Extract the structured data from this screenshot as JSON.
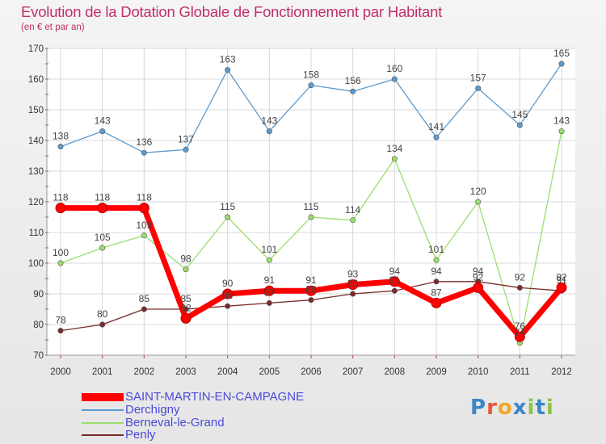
{
  "title": "Evolution de la Dotation Globale de Fonctionnement par Habitant",
  "subtitle": "(en € et par an)",
  "logo": {
    "letters": [
      "P",
      "r",
      "o",
      "x",
      "i",
      "t",
      "i"
    ],
    "colors": [
      "#3a86c8",
      "#e8543a",
      "#f5a623",
      "#3a86c8",
      "#8bc34a",
      "#3a86c8",
      "#8bc34a"
    ]
  },
  "chart_data": {
    "type": "line",
    "title": "Evolution de la Dotation Globale de Fonctionnement par Habitant",
    "subtitle": "(en € et par an)",
    "xlabel": "",
    "ylabel": "",
    "x": [
      "2000",
      "2001",
      "2002",
      "2003",
      "2004",
      "2005",
      "2006",
      "2007",
      "2008",
      "2009",
      "2010",
      "2011",
      "2012"
    ],
    "ylim": [
      70,
      170
    ],
    "yticks": [
      "70",
      "80",
      "90",
      "100",
      "110",
      "120",
      "130",
      "140",
      "150",
      "160",
      "170"
    ],
    "grid": true,
    "legend_position": "bottom-left",
    "series": [
      {
        "name": "Derchigny",
        "color": "#5b9bd1",
        "values": [
          138,
          143,
          136,
          137,
          163,
          143,
          158,
          156,
          160,
          141,
          157,
          145,
          165
        ],
        "labels": [
          "138",
          "143",
          "136",
          "137",
          "163",
          "143",
          "158",
          "156",
          "160",
          "141",
          "157",
          "145",
          "165"
        ]
      },
      {
        "name": "Berneval-le-Grand",
        "color": "#9adf6e",
        "values": [
          100,
          105,
          109,
          98,
          115,
          101,
          115,
          114,
          134,
          101,
          120,
          74,
          143
        ],
        "labels": [
          "100",
          "105",
          "109",
          "98",
          "115",
          "101",
          "115",
          "114",
          "134",
          "101",
          "120",
          "74",
          "143"
        ]
      },
      {
        "name": "Penly",
        "color": "#7a2a2a",
        "values": [
          78,
          80,
          85,
          85,
          86,
          87,
          88,
          90,
          91,
          94,
          94,
          92,
          91
        ],
        "labels": [
          "78",
          "80",
          "85",
          "85",
          "86",
          "87",
          "88",
          "90",
          "91",
          "94",
          "94",
          "92",
          "91"
        ]
      },
      {
        "name": "SAINT-MARTIN-EN-CAMPAGNE",
        "color": "#ff0000",
        "values": [
          118,
          118,
          118,
          82,
          90,
          91,
          91,
          93,
          94,
          87,
          92,
          76,
          92
        ],
        "labels": [
          "118",
          "118",
          "118",
          "82",
          "90",
          "91",
          "91",
          "93",
          "94",
          "87",
          "92",
          "76",
          "92"
        ]
      }
    ],
    "legend": [
      {
        "name": "SAINT-MARTIN-EN-CAMPAGNE",
        "color": "#ff0000"
      },
      {
        "name": "Derchigny",
        "color": "#5b9bd1"
      },
      {
        "name": "Berneval-le-Grand",
        "color": "#9adf6e"
      },
      {
        "name": "Penly",
        "color": "#7a2a2a"
      }
    ]
  }
}
